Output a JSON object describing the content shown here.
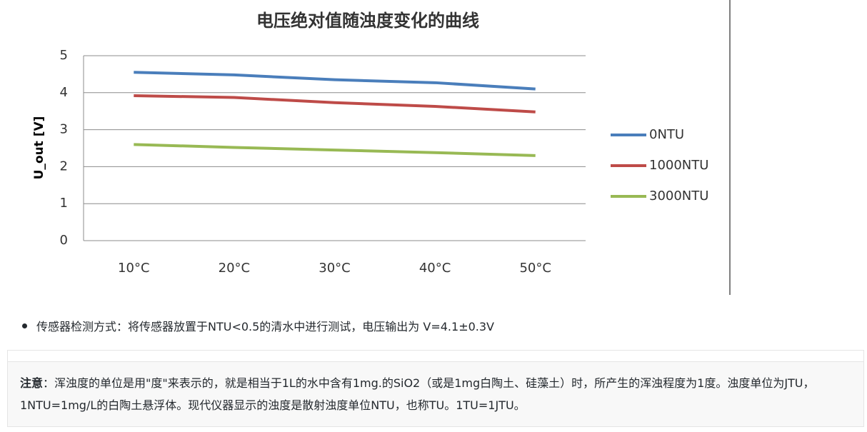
{
  "chart_data": {
    "type": "line",
    "title": "电压绝对值随浊度变化的曲线",
    "y_label": "U_out [V]",
    "categories": [
      "10°C",
      "20°C",
      "30°C",
      "40°C",
      "50°C"
    ],
    "series": [
      {
        "name": "0NTU",
        "color": "#4a7ebb",
        "values": [
          4.55,
          4.48,
          4.35,
          4.27,
          4.1
        ]
      },
      {
        "name": "1000NTU",
        "color": "#be4b48",
        "values": [
          3.92,
          3.87,
          3.73,
          3.63,
          3.48
        ]
      },
      {
        "name": "3000NTU",
        "color": "#98b954",
        "values": [
          2.6,
          2.52,
          2.45,
          2.38,
          2.3
        ]
      }
    ],
    "ylim": [
      0,
      5
    ],
    "yticks": [
      0,
      1,
      2,
      3,
      4,
      5
    ],
    "grid": true,
    "legend": "right"
  },
  "document": {
    "bullet": "传感器检测方式：将传感器放置于NTU<0.5的清水中进行测试，电压输出为 V=4.1±0.3V",
    "note_label": "注意",
    "note_text": "：浑浊度的单位是用\"度\"来表示的，就是相当于1L的水中含有1mg.的SiO2（或是1mg白陶土、硅藻土）时，所产生的浑浊程度为1度。浊度单位为JTU，1NTU=1mg/L的白陶土悬浮体。现代仪器显示的浊度是散射浊度单位NTU，也称TU。1TU=1JTU。"
  }
}
